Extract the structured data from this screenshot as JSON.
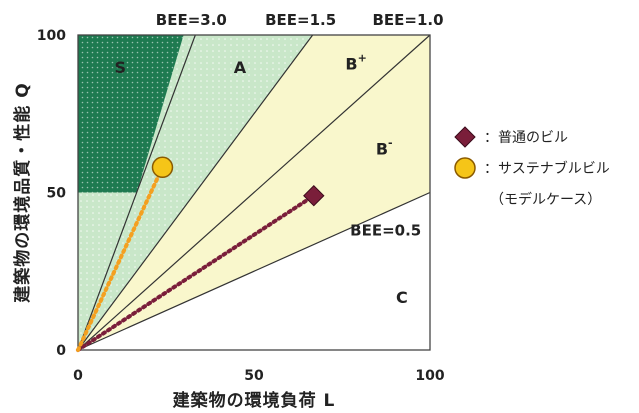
{
  "chart_data": {
    "type": "scatter",
    "xlabel": "建築物の環境負荷 L",
    "ylabel": "建築物の環境品質・性能 Q",
    "xlim": [
      0,
      100
    ],
    "ylim": [
      0,
      100
    ],
    "x_ticks": [
      "0",
      "50",
      "100"
    ],
    "y_ticks": [
      "0",
      "50",
      "100"
    ],
    "bee_lines": [
      {
        "label": "BEE=3.0",
        "slope": 3.0
      },
      {
        "label": "BEE=1.5",
        "slope": 1.5
      },
      {
        "label": "BEE=1.0",
        "slope": 1.0
      },
      {
        "label": "BEE=0.5",
        "slope": 0.5
      }
    ],
    "zones": [
      "S",
      "A",
      "B+",
      "B-",
      "C"
    ],
    "s_zone_boundary": {
      "q_min": 50,
      "l_at_q50": 16.7,
      "l_at_q100": 30
    },
    "series": [
      {
        "name": "：普通のビル",
        "marker": "diamond",
        "color": "#7a1e3a",
        "x": 67,
        "y": 49
      },
      {
        "name": "：サステナブルビル",
        "marker": "circle",
        "color": "#f5c518",
        "x": 24,
        "y": 58
      }
    ],
    "legend_note": "（モデルケース）",
    "colors": {
      "s_zone": "#1e7a50",
      "a_zone": "#c9e7c9",
      "b_zone": "#f9f7cc",
      "c_zone": "#ffffff",
      "line": "#333333"
    }
  }
}
